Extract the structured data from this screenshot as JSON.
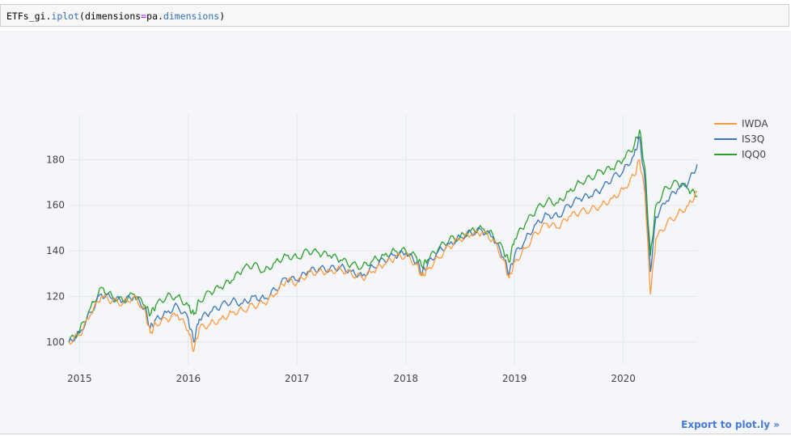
{
  "cell": {
    "code_var": "ETFs_gi",
    "code_dot1": ".",
    "code_method": "iplot",
    "code_open": "(dimensions",
    "code_eq": "=",
    "code_arg_obj": "pa",
    "code_dot2": ".",
    "code_arg_attr": "dimensions",
    "code_close": ")"
  },
  "export_label": "Export to plot.ly »",
  "chart_data": {
    "type": "line",
    "title": "",
    "xlabel": "",
    "ylabel": "",
    "x_ticks": [
      "2015",
      "2016",
      "2017",
      "2018",
      "2019",
      "2020"
    ],
    "y_ticks": [
      "100",
      "120",
      "140",
      "160",
      "180"
    ],
    "xlim": [
      2014.9,
      2020.68
    ],
    "ylim": [
      90,
      200
    ],
    "legend": "top-right",
    "series": [
      {
        "name": "IWDA",
        "color": "#ff9a3c",
        "x": [
          2014.9,
          2015.0,
          2015.1,
          2015.2,
          2015.3,
          2015.4,
          2015.5,
          2015.6,
          2015.65,
          2015.7,
          2015.8,
          2015.9,
          2016.0,
          2016.05,
          2016.1,
          2016.2,
          2016.3,
          2016.4,
          2016.5,
          2016.6,
          2016.7,
          2016.8,
          2016.9,
          2017.0,
          2017.1,
          2017.2,
          2017.3,
          2017.4,
          2017.5,
          2017.6,
          2017.7,
          2017.8,
          2017.9,
          2018.0,
          2018.1,
          2018.15,
          2018.2,
          2018.3,
          2018.4,
          2018.5,
          2018.6,
          2018.7,
          2018.8,
          2018.9,
          2018.95,
          2019.0,
          2019.1,
          2019.2,
          2019.3,
          2019.4,
          2019.5,
          2019.6,
          2019.7,
          2019.8,
          2019.9,
          2020.0,
          2020.1,
          2020.15,
          2020.2,
          2020.25,
          2020.3,
          2020.4,
          2020.5,
          2020.6,
          2020.68
        ],
        "values": [
          100,
          103,
          112,
          120,
          118,
          117,
          120,
          114,
          104,
          108,
          110,
          112,
          105,
          96,
          106,
          108,
          110,
          113,
          114,
          116,
          117,
          121,
          127,
          126,
          130,
          131,
          131,
          132,
          130,
          128,
          131,
          134,
          137,
          138,
          134,
          129,
          132,
          137,
          142,
          145,
          147,
          148,
          145,
          136,
          128,
          135,
          141,
          148,
          152,
          150,
          155,
          157,
          158,
          160,
          163,
          167,
          173,
          180,
          165,
          121,
          145,
          152,
          156,
          160,
          166
        ]
      },
      {
        "name": "IS3Q",
        "color": "#3a76b8",
        "x": [
          2014.9,
          2015.0,
          2015.1,
          2015.2,
          2015.3,
          2015.4,
          2015.5,
          2015.6,
          2015.65,
          2015.7,
          2015.8,
          2015.9,
          2016.0,
          2016.05,
          2016.1,
          2016.2,
          2016.3,
          2016.4,
          2016.5,
          2016.6,
          2016.7,
          2016.8,
          2016.9,
          2017.0,
          2017.1,
          2017.2,
          2017.3,
          2017.4,
          2017.5,
          2017.6,
          2017.7,
          2017.8,
          2017.9,
          2018.0,
          2018.1,
          2018.15,
          2018.2,
          2018.3,
          2018.4,
          2018.5,
          2018.6,
          2018.7,
          2018.8,
          2018.9,
          2018.95,
          2019.0,
          2019.1,
          2019.2,
          2019.3,
          2019.4,
          2019.5,
          2019.6,
          2019.7,
          2019.8,
          2019.9,
          2020.0,
          2020.1,
          2020.15,
          2020.2,
          2020.25,
          2020.3,
          2020.4,
          2020.5,
          2020.6,
          2020.68
        ],
        "values": [
          100,
          104,
          113,
          121,
          119,
          118,
          120,
          115,
          106,
          110,
          113,
          116,
          110,
          100,
          110,
          113,
          116,
          118,
          117,
          120,
          119,
          123,
          128,
          127,
          131,
          132,
          132,
          133,
          131,
          129,
          133,
          136,
          138,
          139,
          135,
          130,
          134,
          140,
          143,
          146,
          148,
          149,
          146,
          137,
          130,
          138,
          145,
          152,
          156,
          155,
          160,
          163,
          164,
          167,
          172,
          175,
          182,
          190,
          170,
          131,
          155,
          162,
          167,
          170,
          178
        ]
      },
      {
        "name": "IQQ0",
        "color": "#2ca02c",
        "x": [
          2014.9,
          2015.0,
          2015.1,
          2015.2,
          2015.3,
          2015.4,
          2015.5,
          2015.6,
          2015.65,
          2015.7,
          2015.8,
          2015.9,
          2016.0,
          2016.05,
          2016.1,
          2016.2,
          2016.3,
          2016.4,
          2016.5,
          2016.6,
          2016.7,
          2016.8,
          2016.9,
          2017.0,
          2017.1,
          2017.2,
          2017.3,
          2017.4,
          2017.5,
          2017.6,
          2017.7,
          2017.8,
          2017.9,
          2018.0,
          2018.1,
          2018.15,
          2018.2,
          2018.3,
          2018.4,
          2018.5,
          2018.6,
          2018.7,
          2018.8,
          2018.9,
          2018.95,
          2019.0,
          2019.1,
          2019.2,
          2019.3,
          2019.4,
          2019.5,
          2019.6,
          2019.7,
          2019.8,
          2019.9,
          2020.0,
          2020.1,
          2020.15,
          2020.2,
          2020.25,
          2020.3,
          2020.4,
          2020.5,
          2020.6,
          2020.68
        ],
        "values": [
          100,
          105,
          115,
          124,
          120,
          118,
          121,
          116,
          112,
          116,
          120,
          120,
          116,
          112,
          118,
          122,
          124,
          127,
          132,
          134,
          131,
          135,
          138,
          137,
          140,
          139,
          138,
          136,
          134,
          133,
          136,
          138,
          140,
          140,
          137,
          133,
          136,
          141,
          145,
          146,
          149,
          150,
          147,
          140,
          135,
          145,
          152,
          158,
          162,
          161,
          166,
          170,
          172,
          175,
          176,
          180,
          186,
          193,
          176,
          138,
          160,
          168,
          170,
          167,
          164
        ]
      }
    ]
  }
}
